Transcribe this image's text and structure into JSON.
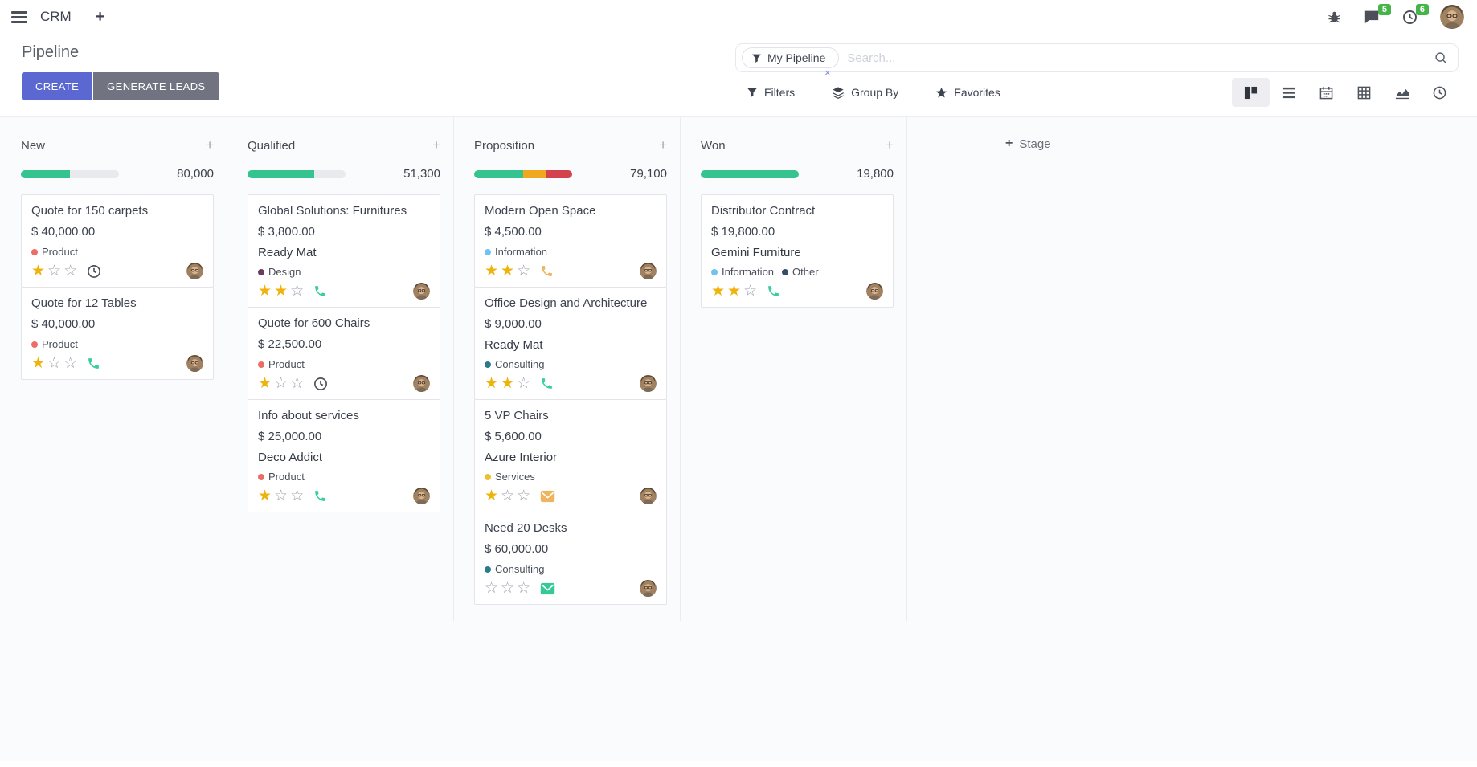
{
  "navbar": {
    "app_name": "CRM",
    "messages_badge": "5",
    "activities_badge": "6"
  },
  "control_panel": {
    "title": "Pipeline",
    "create_label": "CREATE",
    "generate_leads_label": "GENERATE LEADS",
    "search": {
      "facet_label": "My Pipeline",
      "facet_remove": "×",
      "placeholder": "Search..."
    },
    "filters_label": "Filters",
    "group_by_label": "Group By",
    "favorites_label": "Favorites",
    "view_switcher": [
      "kanban-view-icon",
      "list-view-icon",
      "calendar-view-icon",
      "pivot-view-icon",
      "graph-view-icon",
      "activity-view-icon"
    ],
    "active_view": "kanban"
  },
  "board": {
    "add_stage_label": "Stage",
    "columns": [
      {
        "name": "New",
        "amount": "80,000",
        "progress": [
          {
            "color": "green",
            "pct": 50
          }
        ],
        "cards": [
          {
            "title": "Quote for 150 carpets",
            "amount": "$ 40,000.00",
            "tags": [
              {
                "color": "#ed6d64",
                "label": "Product"
              }
            ],
            "stars": 1,
            "activity": {
              "icon": "clock",
              "color": "#495057"
            }
          },
          {
            "title": "Quote for 12 Tables",
            "amount": "$ 40,000.00",
            "tags": [
              {
                "color": "#ed6d64",
                "label": "Product"
              }
            ],
            "stars": 1,
            "activity": {
              "icon": "phone",
              "color": "#38cf9d"
            }
          }
        ]
      },
      {
        "name": "Qualified",
        "amount": "51,300",
        "progress": [
          {
            "color": "green",
            "pct": 68
          }
        ],
        "cards": [
          {
            "title": "Global Solutions: Furnitures",
            "amount": "$ 3,800.00",
            "partner": "Ready Mat",
            "tags": [
              {
                "color": "#6b3b63",
                "label": "Design"
              }
            ],
            "stars": 2,
            "activity": {
              "icon": "phone",
              "color": "#38cf9d"
            }
          },
          {
            "title": "Quote for 600 Chairs",
            "amount": "$ 22,500.00",
            "tags": [
              {
                "color": "#ed6d64",
                "label": "Product"
              }
            ],
            "stars": 1,
            "activity": {
              "icon": "clock",
              "color": "#495057"
            }
          },
          {
            "title": "Info about services",
            "amount": "$ 25,000.00",
            "partner": "Deco Addict",
            "tags": [
              {
                "color": "#ed6d64",
                "label": "Product"
              }
            ],
            "stars": 1,
            "activity": {
              "icon": "phone",
              "color": "#38cf9d"
            }
          }
        ]
      },
      {
        "name": "Proposition",
        "amount": "79,100",
        "progress": [
          {
            "color": "green",
            "pct": 50
          },
          {
            "color": "yellow",
            "pct": 24
          },
          {
            "color": "red",
            "pct": 26
          }
        ],
        "cards": [
          {
            "title": "Modern Open Space",
            "amount": "$ 4,500.00",
            "tags": [
              {
                "color": "#6fc3ee",
                "label": "Information"
              }
            ],
            "stars": 2,
            "activity": {
              "icon": "phone",
              "color": "#f0b35e"
            }
          },
          {
            "title": "Office Design and Architecture",
            "amount": "$ 9,000.00",
            "partner": "Ready Mat",
            "tags": [
              {
                "color": "#2a7b8c",
                "label": "Consulting"
              }
            ],
            "stars": 2,
            "activity": {
              "icon": "phone",
              "color": "#38cf9d"
            }
          },
          {
            "title": "5 VP Chairs",
            "amount": "$ 5,600.00",
            "partner": "Azure Interior",
            "tags": [
              {
                "color": "#eec02c",
                "label": "Services"
              }
            ],
            "stars": 1,
            "activity": {
              "icon": "envelope",
              "color": "#f0b35e"
            }
          },
          {
            "title": "Need 20 Desks",
            "amount": "$ 60,000.00",
            "tags": [
              {
                "color": "#2a7b8c",
                "label": "Consulting"
              }
            ],
            "stars": 0,
            "activity": {
              "icon": "envelope",
              "color": "#35c995"
            }
          }
        ]
      },
      {
        "name": "Won",
        "amount": "19,800",
        "progress": [
          {
            "color": "green",
            "pct": 100
          }
        ],
        "cards": [
          {
            "title": "Distributor Contract",
            "amount": "$ 19,800.00",
            "partner": "Gemini Furniture",
            "tags": [
              {
                "color": "#6fc3ee",
                "label": "Information"
              },
              {
                "color": "#374a6e",
                "label": "Other"
              }
            ],
            "stars": 2,
            "activity": {
              "icon": "phone",
              "color": "#38cf9d"
            }
          }
        ]
      }
    ]
  },
  "colors": {
    "green": "#35c38f",
    "yellow": "#f0a81e",
    "red": "#d4424e",
    "bar_bg": "#e8eaed",
    "star_filled": "#efb30e",
    "star_empty": "#9ba1aa",
    "create_button": "#5b68d1",
    "generate_button": "#717480",
    "badge": "#45b549"
  }
}
